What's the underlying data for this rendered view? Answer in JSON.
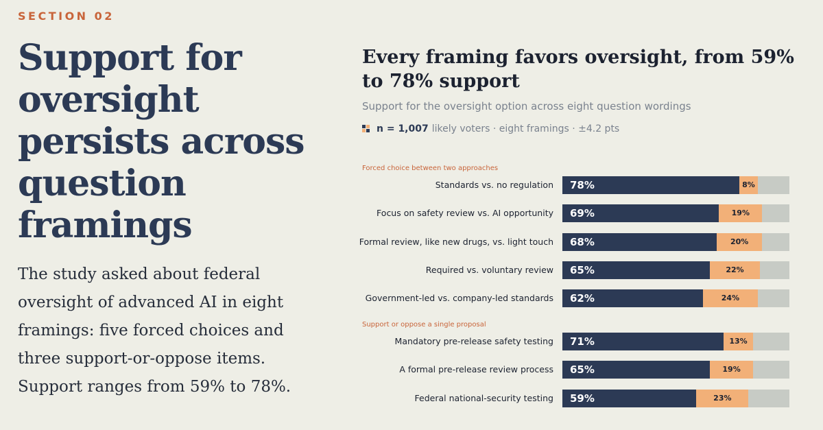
{
  "section_label": "SECTION 02",
  "headline": "Support for oversight persists across question framings",
  "body": "The study asked about federal oversight of advanced AI in eight framings: five forced choices and three support-or-oppose items. Support ranges from 59% to 78%.",
  "colors": {
    "support": "#2c3a55",
    "oppose": "#f2b078",
    "remainder": "#c7cbc5",
    "accent": "#c8643a",
    "background": "#eeeee6"
  },
  "sample": {
    "icon": "grid-icon",
    "n": "n = 1,007",
    "rest": "likely voters · eight framings · ±4.2 pts"
  },
  "chart_data": {
    "type": "bar",
    "orientation": "horizontal",
    "stacked": true,
    "title": "Every framing favors oversight, from 59% to 78% support",
    "subtitle": "Support for the oversight option across eight question wordings",
    "xlim": [
      0,
      100
    ],
    "groups": [
      {
        "label": "Forced choice between two approaches",
        "rows": [
          {
            "label": "Standards vs. no regulation",
            "support": 78,
            "oppose": 8
          },
          {
            "label": "Focus on safety review vs. AI opportunity",
            "support": 69,
            "oppose": 19
          },
          {
            "label": "Formal review, like new drugs, vs. light touch",
            "support": 68,
            "oppose": 20
          },
          {
            "label": "Required vs. voluntary review",
            "support": 65,
            "oppose": 22
          },
          {
            "label": "Government-led vs. company-led standards",
            "support": 62,
            "oppose": 24
          }
        ]
      },
      {
        "label": "Support or oppose a single proposal",
        "rows": [
          {
            "label": "Mandatory pre-release safety testing",
            "support": 71,
            "oppose": 13
          },
          {
            "label": "A formal pre-release review process",
            "support": 65,
            "oppose": 19
          },
          {
            "label": "Federal national-security testing",
            "support": 59,
            "oppose": 23
          }
        ]
      }
    ]
  }
}
